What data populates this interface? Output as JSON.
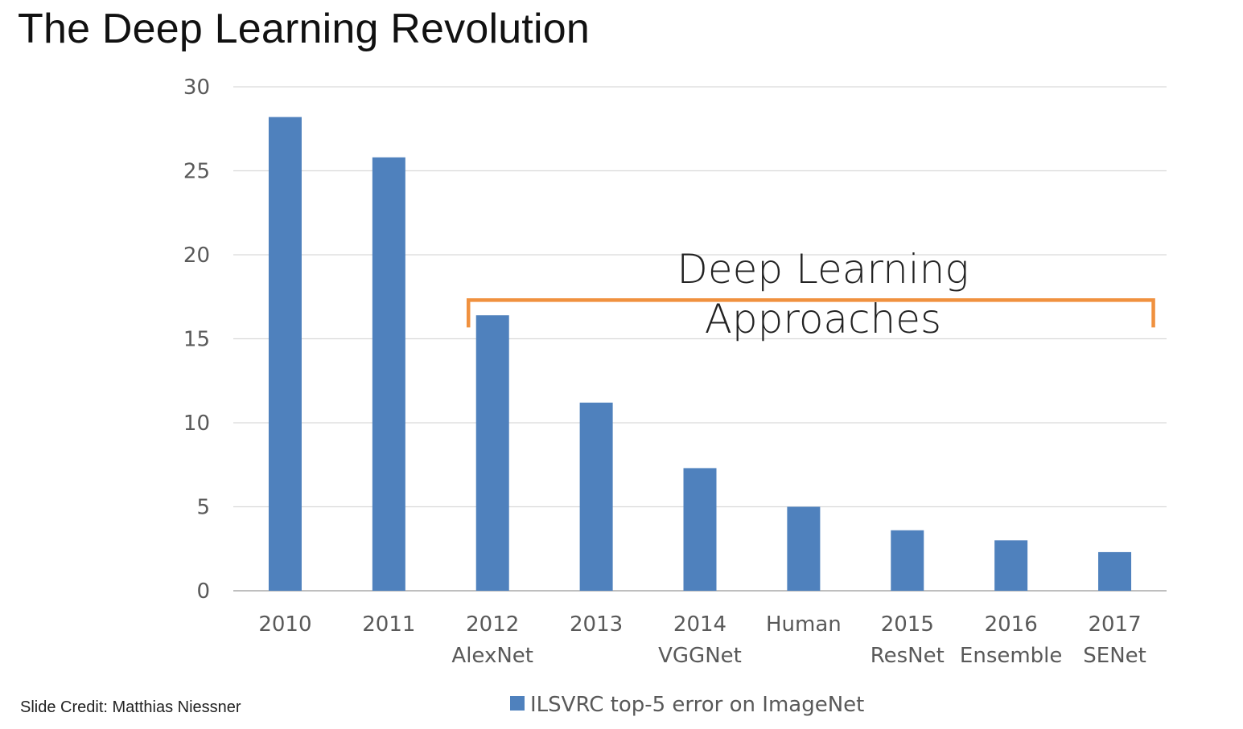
{
  "slide": {
    "title": "The Deep Learning Revolution",
    "credit": "Slide Credit: Matthias Niessner"
  },
  "chart_data": {
    "type": "bar",
    "categories": [
      [
        "2010"
      ],
      [
        "2011"
      ],
      [
        "2012",
        "AlexNet"
      ],
      [
        "2013"
      ],
      [
        "2014",
        "VGGNet"
      ],
      [
        "Human"
      ],
      [
        "2015",
        "ResNet"
      ],
      [
        "2016",
        "Ensemble"
      ],
      [
        "2017",
        "SENet"
      ]
    ],
    "series": [
      {
        "name": "ILSVRC top-5 error on ImageNet",
        "color": "#4f81bd",
        "values": [
          28.2,
          25.8,
          16.4,
          11.2,
          7.3,
          5.0,
          3.6,
          3.0,
          2.3
        ]
      }
    ],
    "ylim": [
      0,
      30
    ],
    "yticks": [
      0,
      5,
      10,
      15,
      20,
      25,
      30
    ],
    "grid": true,
    "legend_position": "bottom",
    "annotation": {
      "lines": [
        "Deep Learning",
        "Approaches"
      ],
      "bracket_from_category": 2,
      "bracket_to_category": 8,
      "bracket_value": 17.3,
      "bracket_color": "#f0913f"
    }
  }
}
